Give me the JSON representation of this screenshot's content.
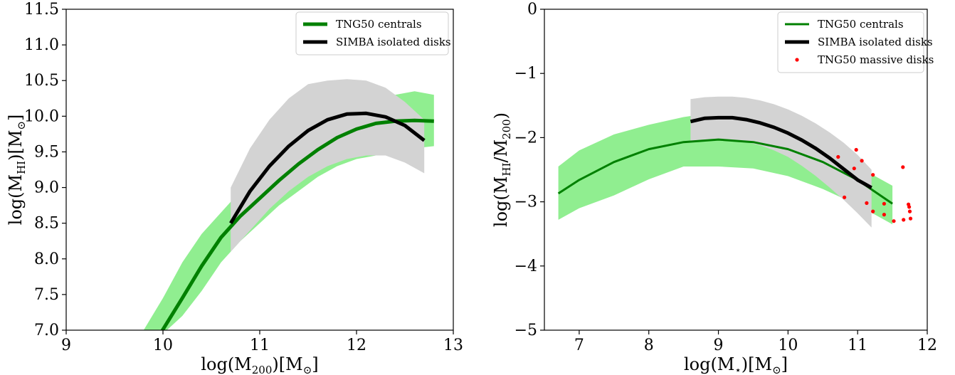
{
  "chart_data": [
    {
      "type": "line",
      "xlabel": {
        "main": "log(M",
        "sub": "200",
        "unit": ")[M",
        "sym": "⊙",
        "end": "]"
      },
      "ylabel": {
        "main": "log(M",
        "sub": "HI",
        "unit": ")[M",
        "sym": "⊙",
        "end": "]"
      },
      "xlim": [
        9,
        13
      ],
      "ylim": [
        7.0,
        11.5
      ],
      "xticks": [
        9,
        10,
        11,
        12,
        13
      ],
      "xtick_labels": [
        "9",
        "10",
        "11",
        "12",
        "13"
      ],
      "yticks": [
        7.0,
        7.5,
        8.0,
        8.5,
        9.0,
        9.5,
        10.0,
        10.5,
        11.0,
        11.5
      ],
      "ytick_labels": [
        "7.0",
        "7.5",
        "8.0",
        "8.5",
        "9.0",
        "9.5",
        "10.0",
        "10.5",
        "11.0",
        "11.5"
      ],
      "legend": {
        "placement": "top-right",
        "entries": [
          "TNG50 centrals",
          "SIMBA isolated disks"
        ]
      },
      "bands": [
        {
          "name": "TNG50 centrals",
          "color": "#90ee90",
          "x": [
            9.8,
            10.0,
            10.2,
            10.4,
            10.6,
            10.8,
            11.0,
            11.2,
            11.4,
            11.6,
            11.8,
            12.0,
            12.2,
            12.4,
            12.6,
            12.8
          ],
          "upper": [
            7.0,
            7.45,
            7.95,
            8.35,
            8.65,
            8.95,
            9.2,
            9.45,
            9.65,
            9.85,
            10.0,
            10.12,
            10.22,
            10.3,
            10.35,
            10.3
          ],
          "lower": [
            6.55,
            6.95,
            7.2,
            7.55,
            7.95,
            8.25,
            8.5,
            8.75,
            8.95,
            9.15,
            9.3,
            9.4,
            9.45,
            9.5,
            9.55,
            9.58
          ]
        },
        {
          "name": "SIMBA isolated disks",
          "color": "#d3d3d3",
          "x": [
            10.7,
            10.9,
            11.1,
            11.3,
            11.5,
            11.7,
            11.9,
            12.1,
            12.3,
            12.5,
            12.7
          ],
          "upper": [
            9.0,
            9.55,
            9.95,
            10.25,
            10.45,
            10.5,
            10.52,
            10.5,
            10.4,
            10.2,
            9.95
          ],
          "lower": [
            8.1,
            8.4,
            8.7,
            8.95,
            9.15,
            9.3,
            9.4,
            9.45,
            9.45,
            9.35,
            9.2
          ]
        }
      ],
      "series": [
        {
          "name": "TNG50 centrals",
          "color": "#008000",
          "width": 5,
          "x": [
            9.95,
            10.2,
            10.4,
            10.6,
            10.8,
            11.0,
            11.2,
            11.4,
            11.6,
            11.8,
            12.0,
            12.2,
            12.4,
            12.6,
            12.8
          ],
          "y": [
            6.9,
            7.45,
            7.9,
            8.3,
            8.6,
            8.85,
            9.1,
            9.33,
            9.53,
            9.7,
            9.82,
            9.9,
            9.93,
            9.94,
            9.93
          ]
        },
        {
          "name": "SIMBA isolated disks",
          "color": "#000000",
          "width": 5,
          "x": [
            10.7,
            10.9,
            11.1,
            11.3,
            11.5,
            11.7,
            11.9,
            12.1,
            12.3,
            12.5,
            12.7
          ],
          "y": [
            8.5,
            8.95,
            9.3,
            9.58,
            9.8,
            9.95,
            10.03,
            10.04,
            9.99,
            9.87,
            9.66
          ]
        }
      ]
    },
    {
      "type": "line",
      "xlabel": {
        "main": "log(M",
        "sub": "⋆",
        "unit": ")[M",
        "sym": "⊙",
        "end": "]"
      },
      "ylabel": {
        "main": "log(M",
        "sub": "HI",
        "unit": "/M",
        "sub2": "200",
        "end": ")"
      },
      "xlim": [
        6.5,
        12
      ],
      "ylim": [
        -5,
        0
      ],
      "xticks": [
        7,
        8,
        9,
        10,
        11,
        12
      ],
      "xtick_labels": [
        "7",
        "8",
        "9",
        "10",
        "11",
        "12"
      ],
      "yticks": [
        -5,
        -4,
        -3,
        -2,
        -1,
        0
      ],
      "ytick_labels": [
        "−5",
        "−4",
        "−3",
        "−2",
        "−1",
        "0"
      ],
      "legend": {
        "placement": "top-right",
        "entries": [
          "TNG50 centrals",
          "SIMBA isolated disks",
          "TNG50 massive disks"
        ]
      },
      "bands": [
        {
          "name": "TNG50 centrals",
          "color": "#90ee90",
          "x": [
            6.7,
            7.0,
            7.5,
            8.0,
            8.5,
            9.0,
            9.5,
            10.0,
            10.5,
            11.0,
            11.5
          ],
          "upper": [
            -2.45,
            -2.2,
            -1.95,
            -1.8,
            -1.68,
            -1.6,
            -1.72,
            -1.85,
            -2.1,
            -2.45,
            -2.75
          ],
          "lower": [
            -3.28,
            -3.1,
            -2.9,
            -2.65,
            -2.45,
            -2.45,
            -2.48,
            -2.6,
            -2.8,
            -3.05,
            -3.35
          ]
        },
        {
          "name": "SIMBA isolated disks",
          "color": "#d3d3d3",
          "x": [
            8.6,
            8.8,
            9.0,
            9.2,
            9.4,
            9.6,
            9.8,
            10.0,
            10.2,
            10.4,
            10.6,
            10.8,
            11.0,
            11.2
          ],
          "upper": [
            -1.4,
            -1.37,
            -1.36,
            -1.36,
            -1.38,
            -1.42,
            -1.48,
            -1.56,
            -1.66,
            -1.78,
            -1.92,
            -2.08,
            -2.27,
            -2.5
          ],
          "lower": [
            -2.05,
            -2.03,
            -2.03,
            -2.04,
            -2.07,
            -2.12,
            -2.2,
            -2.3,
            -2.44,
            -2.6,
            -2.78,
            -2.97,
            -3.18,
            -3.4
          ]
        }
      ],
      "series": [
        {
          "name": "TNG50 centrals",
          "color": "#008000",
          "width": 3,
          "x": [
            6.7,
            7.0,
            7.5,
            8.0,
            8.5,
            9.0,
            9.5,
            10.0,
            10.5,
            11.0,
            11.5
          ],
          "y": [
            -2.87,
            -2.66,
            -2.38,
            -2.18,
            -2.07,
            -2.03,
            -2.07,
            -2.18,
            -2.38,
            -2.66,
            -3.03
          ]
        },
        {
          "name": "SIMBA isolated disks",
          "color": "#000000",
          "width": 5,
          "x": [
            8.6,
            8.8,
            9.0,
            9.2,
            9.4,
            9.6,
            9.8,
            10.0,
            10.2,
            10.4,
            10.6,
            10.8,
            11.0,
            11.2
          ],
          "y": [
            -1.75,
            -1.7,
            -1.69,
            -1.69,
            -1.72,
            -1.77,
            -1.84,
            -1.93,
            -2.04,
            -2.17,
            -2.32,
            -2.49,
            -2.66,
            -2.78
          ]
        }
      ],
      "scatter": {
        "name": "TNG50 massive disks",
        "color": "#ff0000",
        "x": [
          10.72,
          10.81,
          10.95,
          10.98,
          11.06,
          11.13,
          11.22,
          11.22,
          11.38,
          11.38,
          11.52,
          11.65,
          11.66,
          11.73,
          11.74,
          11.75,
          11.76
        ],
        "y": [
          -2.3,
          -2.93,
          -2.48,
          -2.19,
          -2.36,
          -3.02,
          -2.58,
          -3.15,
          -3.03,
          -3.2,
          -3.3,
          -2.46,
          -3.28,
          -3.04,
          -3.08,
          -3.15,
          -3.26
        ]
      }
    }
  ]
}
